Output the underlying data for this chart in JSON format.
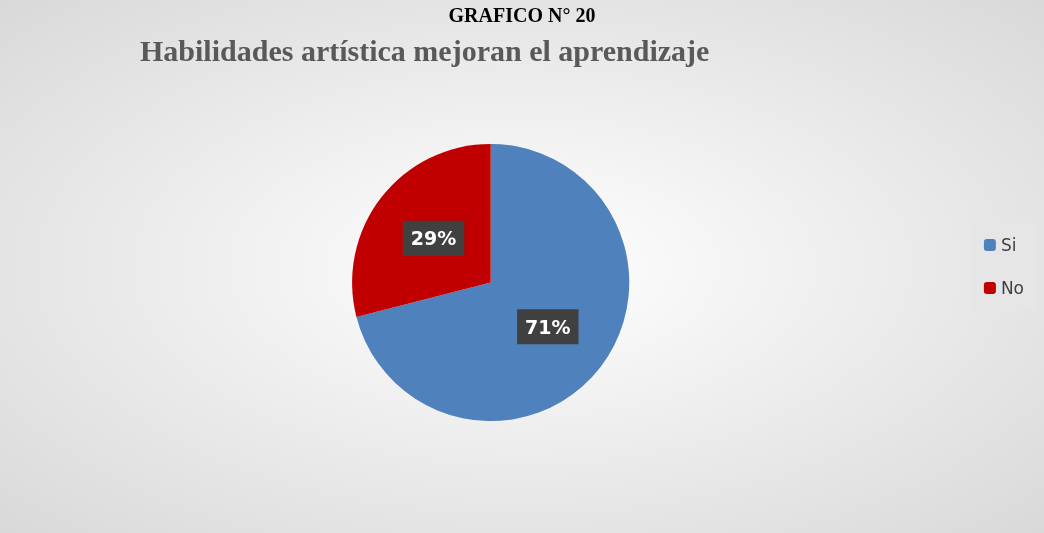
{
  "chart_data": {
    "type": "pie",
    "title": "Habilidades artística mejoran el aprendizaje",
    "annotations": [
      "GRAFICO N° 20"
    ],
    "categories": [
      "Si",
      "No"
    ],
    "values": [
      71,
      29
    ],
    "colors": [
      "#4f81bd",
      "#c00000"
    ],
    "value_labels": [
      "71%",
      "29%"
    ],
    "legend": "right"
  }
}
